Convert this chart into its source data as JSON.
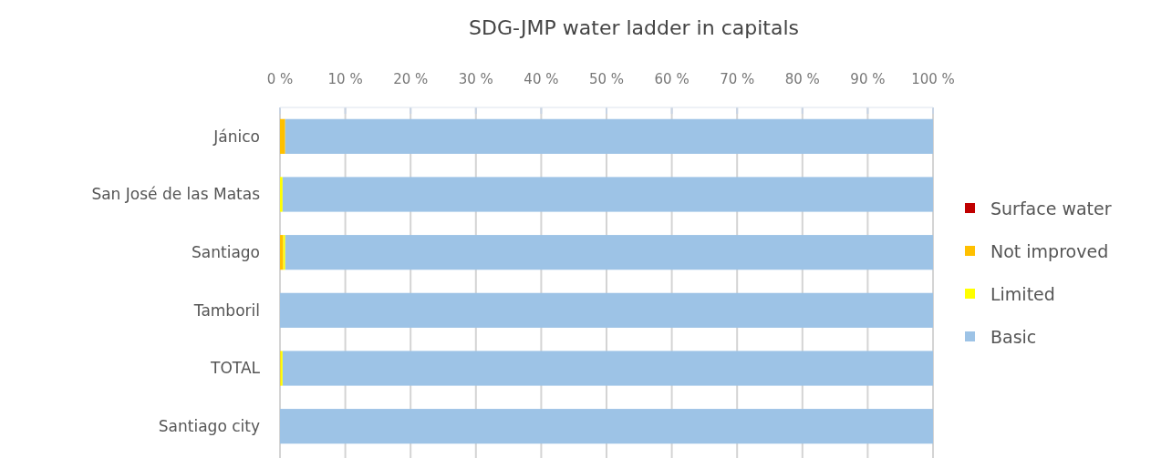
{
  "chart_data": {
    "type": "bar",
    "title": "SDG-JMP water ladder in capitals",
    "orientation": "horizontal",
    "stacked": true,
    "categories": [
      "Jánico",
      "San José de las Matas",
      "Santiago",
      "Tamboril",
      "TOTAL",
      "Santiago city"
    ],
    "series": [
      {
        "name": "Surface water",
        "color": "#c00000",
        "values": [
          0,
          0,
          0,
          0,
          0,
          0
        ]
      },
      {
        "name": "Not improved",
        "color": "#ffc000",
        "values": [
          0.8,
          0,
          0.5,
          0,
          0.1,
          0
        ]
      },
      {
        "name": "Limited",
        "color": "#ffff00",
        "values": [
          0,
          0.4,
          0.3,
          0,
          0.3,
          0
        ]
      },
      {
        "name": "Basic",
        "color": "#9dc3e6",
        "values": [
          99.2,
          99.6,
          99.2,
          100,
          99.6,
          100
        ]
      }
    ],
    "xlim": [
      0,
      100
    ],
    "xticks": [
      {
        "value": 0,
        "label": "0 %"
      },
      {
        "value": 10,
        "label": "10 %"
      },
      {
        "value": 20,
        "label": "20 %"
      },
      {
        "value": 30,
        "label": "30 %"
      },
      {
        "value": 40,
        "label": "40 %"
      },
      {
        "value": 50,
        "label": "50 %"
      },
      {
        "value": 60,
        "label": "60 %"
      },
      {
        "value": 70,
        "label": "70 %"
      },
      {
        "value": 80,
        "label": "80 %"
      },
      {
        "value": 90,
        "label": "90 %"
      },
      {
        "value": 100,
        "label": "100 %"
      }
    ],
    "grid": "x",
    "legend": "right"
  }
}
